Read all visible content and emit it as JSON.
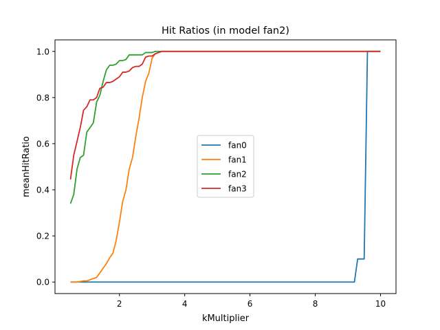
{
  "chart_data": {
    "type": "line",
    "title": "Hit Ratios (in model fan2)",
    "xlabel": "kMultiplier",
    "ylabel": "meanHitRatio",
    "xlim": [
      0.025,
      10.475
    ],
    "ylim": [
      -0.05,
      1.05
    ],
    "xticks": [
      2,
      4,
      6,
      8,
      10
    ],
    "yticks": [
      0.0,
      0.2,
      0.4,
      0.6,
      0.8,
      1.0
    ],
    "xtick_labels": [
      "2",
      "4",
      "6",
      "8",
      "10"
    ],
    "ytick_labels": [
      "0.0",
      "0.2",
      "0.4",
      "0.6",
      "0.8",
      "1.0"
    ],
    "grid": false,
    "legend_position": "center",
    "series": [
      {
        "name": "fan0",
        "color": "#1f77b4",
        "x": [
          0.5,
          9.2,
          9.3,
          9.5,
          9.6,
          10.0
        ],
        "y": [
          0,
          0,
          0.1,
          0.1,
          1.0,
          1.0
        ]
      },
      {
        "name": "fan1",
        "color": "#ff7f0e",
        "x": [
          0.5,
          0.6,
          0.7,
          0.8,
          0.9,
          1.0,
          1.1,
          1.2,
          1.3,
          1.4,
          1.5,
          1.6,
          1.7,
          1.8,
          1.9,
          2.0,
          2.1,
          2.2,
          2.3,
          2.4,
          2.5,
          2.6,
          2.7,
          2.8,
          2.9,
          3.0,
          3.1,
          3.2,
          3.3,
          3.4,
          10.0
        ],
        "y": [
          0,
          0,
          0,
          0.002,
          0.005,
          0.005,
          0.01,
          0.015,
          0.02,
          0.04,
          0.06,
          0.08,
          0.105,
          0.125,
          0.18,
          0.26,
          0.35,
          0.4,
          0.49,
          0.54,
          0.63,
          0.71,
          0.8,
          0.87,
          0.905,
          0.97,
          0.99,
          0.995,
          1.0,
          1.0,
          1.0
        ]
      },
      {
        "name": "fan2",
        "color": "#2ca02c",
        "x": [
          0.5,
          0.6,
          0.7,
          0.8,
          0.9,
          1.0,
          1.1,
          1.2,
          1.3,
          1.4,
          1.5,
          1.6,
          1.7,
          1.8,
          1.9,
          2.0,
          2.1,
          2.2,
          2.3,
          2.4,
          2.5,
          2.6,
          2.7,
          2.8,
          2.9,
          3.0,
          3.1,
          3.2,
          10.0
        ],
        "y": [
          0.34,
          0.38,
          0.49,
          0.54,
          0.55,
          0.65,
          0.67,
          0.69,
          0.78,
          0.81,
          0.87,
          0.92,
          0.94,
          0.94,
          0.945,
          0.96,
          0.96,
          0.965,
          0.985,
          0.985,
          0.985,
          0.985,
          0.985,
          0.995,
          0.995,
          0.995,
          1.0,
          1.0,
          1.0
        ]
      },
      {
        "name": "fan3",
        "color": "#d62728",
        "x": [
          0.5,
          0.6,
          0.7,
          0.8,
          0.9,
          1.0,
          1.1,
          1.2,
          1.3,
          1.4,
          1.5,
          1.6,
          1.7,
          1.8,
          1.9,
          2.0,
          2.1,
          2.2,
          2.3,
          2.4,
          2.5,
          2.6,
          2.7,
          2.8,
          2.9,
          3.0,
          3.1,
          3.2,
          3.3,
          10.0
        ],
        "y": [
          0.445,
          0.55,
          0.61,
          0.67,
          0.745,
          0.76,
          0.79,
          0.79,
          0.8,
          0.84,
          0.845,
          0.865,
          0.865,
          0.87,
          0.88,
          0.89,
          0.91,
          0.91,
          0.915,
          0.93,
          0.935,
          0.935,
          0.945,
          0.975,
          0.98,
          0.98,
          0.99,
          0.995,
          1.0,
          1.0
        ]
      }
    ]
  }
}
